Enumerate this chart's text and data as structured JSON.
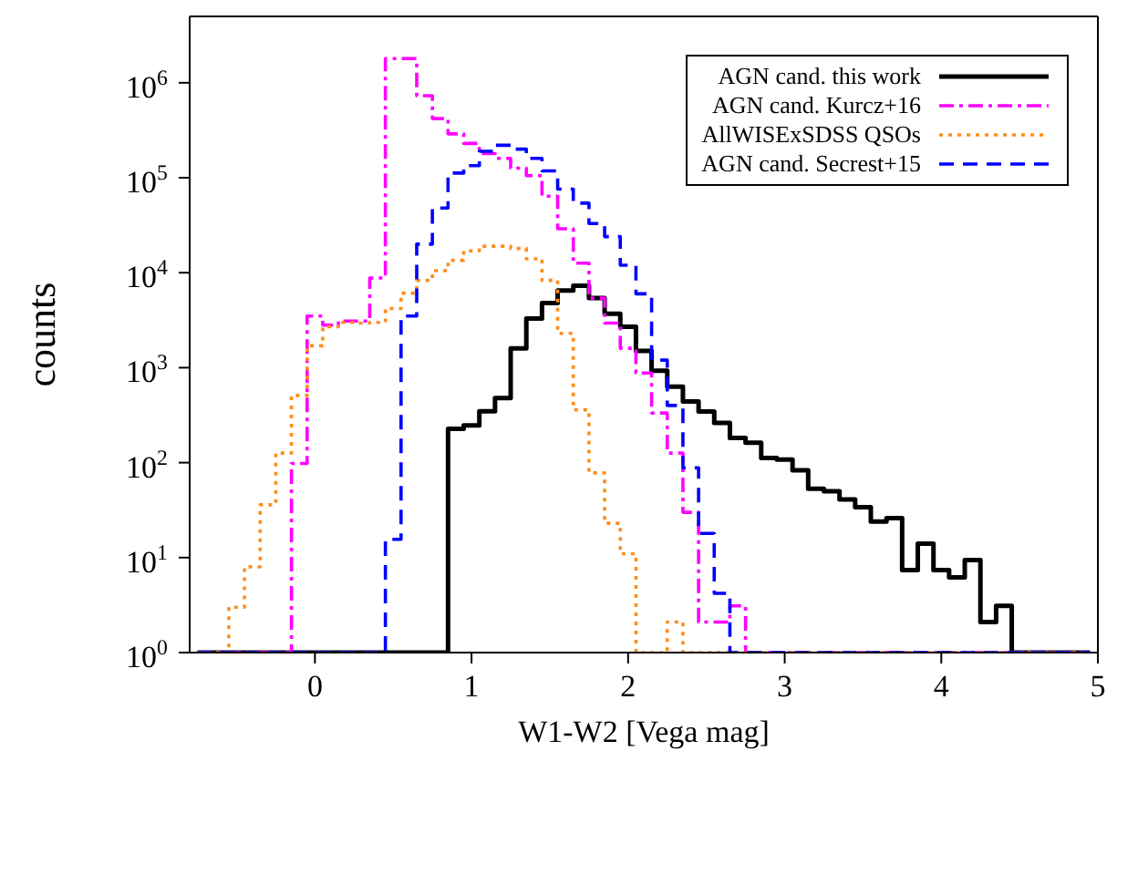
{
  "chart_data": {
    "type": "histogram",
    "xlabel": "W1-W2 [Vega mag]",
    "ylabel": "counts",
    "log": "y",
    "xlim": [
      -0.8,
      5
    ],
    "xticks": [
      0,
      1,
      2,
      3,
      4,
      5
    ],
    "ylim": [
      1,
      5000000
    ],
    "yticks": [
      {
        "value": 1,
        "label": "10$^{0}$"
      },
      {
        "value": 10,
        "label": "10$^{1}$"
      },
      {
        "value": 100,
        "label": "10$^{2}$"
      },
      {
        "value": 1000,
        "label": "10$^{3}$"
      },
      {
        "value": 10000,
        "label": "10$^{4}$"
      },
      {
        "value": 100000,
        "label": "10$^{5}$"
      },
      {
        "value": 1000000,
        "label": "10$^{6}$"
      }
    ],
    "grid": false,
    "legend": "top right",
    "bins": [
      -0.75,
      -0.65,
      -0.55,
      -0.45,
      -0.35,
      -0.25,
      -0.15,
      -0.05,
      0.05,
      0.15,
      0.25,
      0.35,
      0.45,
      0.55,
      0.65,
      0.75,
      0.85,
      0.95,
      1.05,
      1.15,
      1.25,
      1.35,
      1.45,
      1.55,
      1.65,
      1.75,
      1.85,
      1.95,
      2.05,
      2.15,
      2.25,
      2.35,
      2.45,
      2.55,
      2.65,
      2.75,
      2.85,
      2.95,
      3.05,
      3.15,
      3.25,
      3.35,
      3.45,
      3.55,
      3.65,
      3.75,
      3.85,
      3.95,
      4.05,
      4.15,
      4.25,
      4.35,
      4.45,
      4.55,
      4.65,
      4.75,
      4.85,
      4.95
    ],
    "series": [
      {
        "name": "AGN cand. this work",
        "color": "#000000",
        "line_style": "solid",
        "values": [
          1,
          1,
          1,
          1,
          1,
          1,
          1,
          1,
          1,
          1,
          1,
          1,
          1,
          1,
          1,
          1,
          227,
          247,
          347,
          480,
          1600,
          3300,
          4800,
          6500,
          7300,
          5400,
          3700,
          2700,
          1500,
          930,
          630,
          440,
          345,
          262,
          182,
          162,
          112,
          108,
          83,
          53,
          50,
          41,
          34,
          24,
          26,
          7.4,
          14,
          7.4,
          6.2,
          9.4,
          2.1,
          3.1,
          1,
          1,
          1,
          1,
          1
        ]
      },
      {
        "name": "AGN cand. Kurcz+16",
        "color": "#ff00ff",
        "line_style": "dashdot",
        "values": [
          1,
          1,
          1,
          1,
          1,
          1,
          98,
          3500,
          2800,
          3100,
          3100,
          8800,
          1800000,
          1800000,
          730000,
          420000,
          290000,
          230000,
          180000,
          160000,
          126000,
          105000,
          64000,
          29000,
          12600,
          5400,
          2950,
          1600,
          880,
          333,
          126,
          30,
          2.1,
          2.1,
          3.1,
          1,
          1,
          1,
          1,
          1,
          1,
          1,
          1,
          1,
          1,
          1,
          1,
          1,
          1,
          1,
          1,
          1,
          1,
          1,
          1,
          1,
          1
        ]
      },
      {
        "name": "AllWISExSDSS QSOs",
        "color": "#ff8c1a",
        "line_style": "dotted",
        "values": [
          1,
          1,
          3,
          8,
          36,
          126,
          510,
          1700,
          2700,
          3000,
          2950,
          3000,
          4200,
          6100,
          8300,
          10500,
          13500,
          17000,
          19000,
          19000,
          18000,
          14000,
          8300,
          2300,
          360,
          78,
          23,
          11,
          1,
          1,
          2.1,
          1,
          1,
          1,
          1,
          1,
          1,
          1,
          1,
          1,
          1,
          1,
          1,
          1,
          1,
          1,
          1,
          1,
          1,
          1,
          1,
          1,
          1,
          1,
          1,
          1,
          1
        ]
      },
      {
        "name": "AGN cand. Secrest+15",
        "color": "#0000ff",
        "line_style": "dashed",
        "values": [
          1,
          1,
          1,
          1,
          1,
          1,
          1,
          1,
          1,
          1,
          1,
          1,
          15.6,
          3500,
          20000,
          48000,
          112000,
          134000,
          190000,
          220000,
          200000,
          160000,
          118000,
          76000,
          54000,
          33000,
          24000,
          12000,
          6000,
          1200,
          400,
          88,
          18,
          4.2,
          1,
          1,
          1,
          1,
          1,
          1,
          1,
          1,
          1,
          1,
          1,
          1,
          1,
          1,
          1,
          1,
          1,
          1,
          1,
          1,
          1,
          1,
          1
        ]
      }
    ]
  }
}
